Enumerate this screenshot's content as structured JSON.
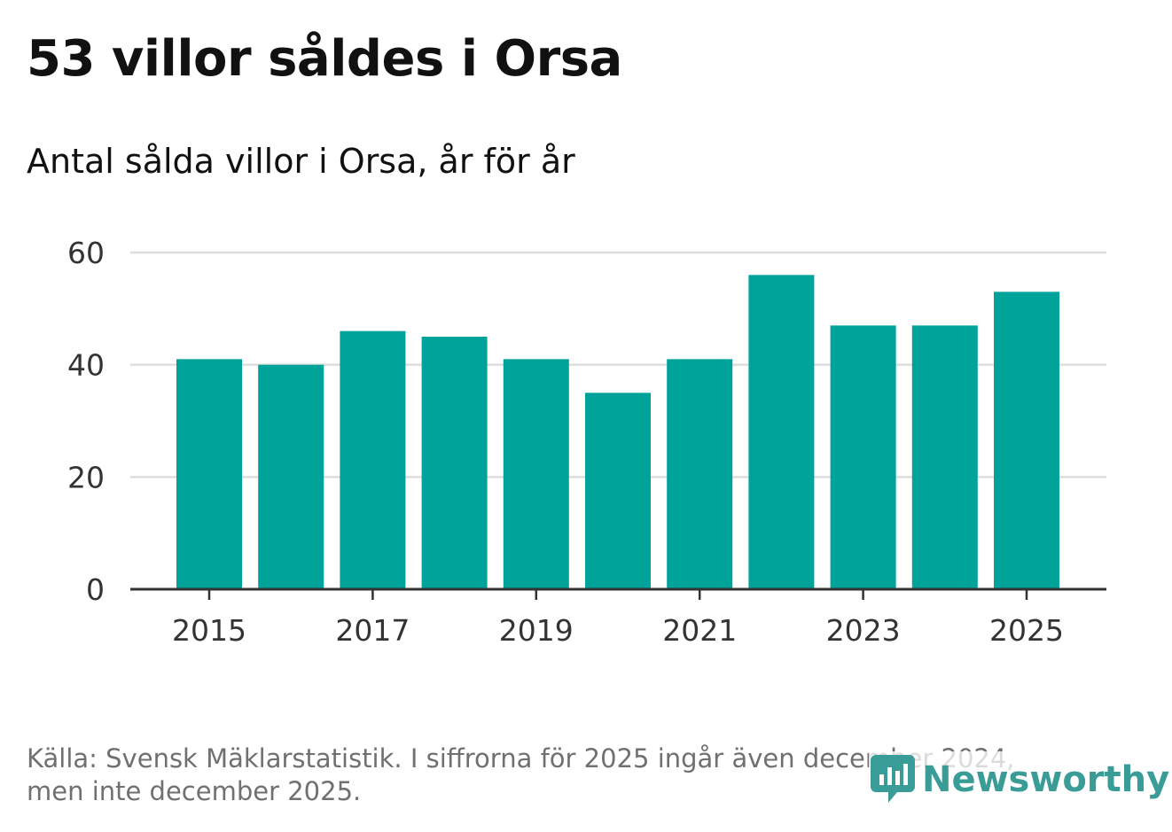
{
  "title": "53 villor såldes i Orsa",
  "subtitle": "Antal sålda villor i Orsa, år för år",
  "chart_data": {
    "type": "bar",
    "title": "53 villor såldes i Orsa",
    "subtitle": "Antal sålda villor i Orsa, år för år",
    "categories": [
      "2015",
      "2016",
      "2017",
      "2018",
      "2019",
      "2020",
      "2021",
      "2022",
      "2023",
      "2024",
      "2025"
    ],
    "values": [
      41,
      40,
      46,
      45,
      41,
      35,
      41,
      56,
      47,
      47,
      53
    ],
    "x_tick_labels": [
      "2015",
      "2017",
      "2019",
      "2021",
      "2023",
      "2025"
    ],
    "y_ticks": [
      0,
      20,
      40,
      60
    ],
    "ylim": [
      0,
      60
    ],
    "xlabel": "",
    "ylabel": "",
    "grid": true,
    "bar_color": "#00a39a"
  },
  "footnote": {
    "line1": "Källa: Svensk Mäklarstatistik. I siffrorna för 2025 ingår även december 2024,",
    "line2": "men inte december 2025."
  },
  "brand": {
    "name": "Newsworthy",
    "icon": "newsworthy-logo-icon",
    "color": "#3a9c96"
  }
}
